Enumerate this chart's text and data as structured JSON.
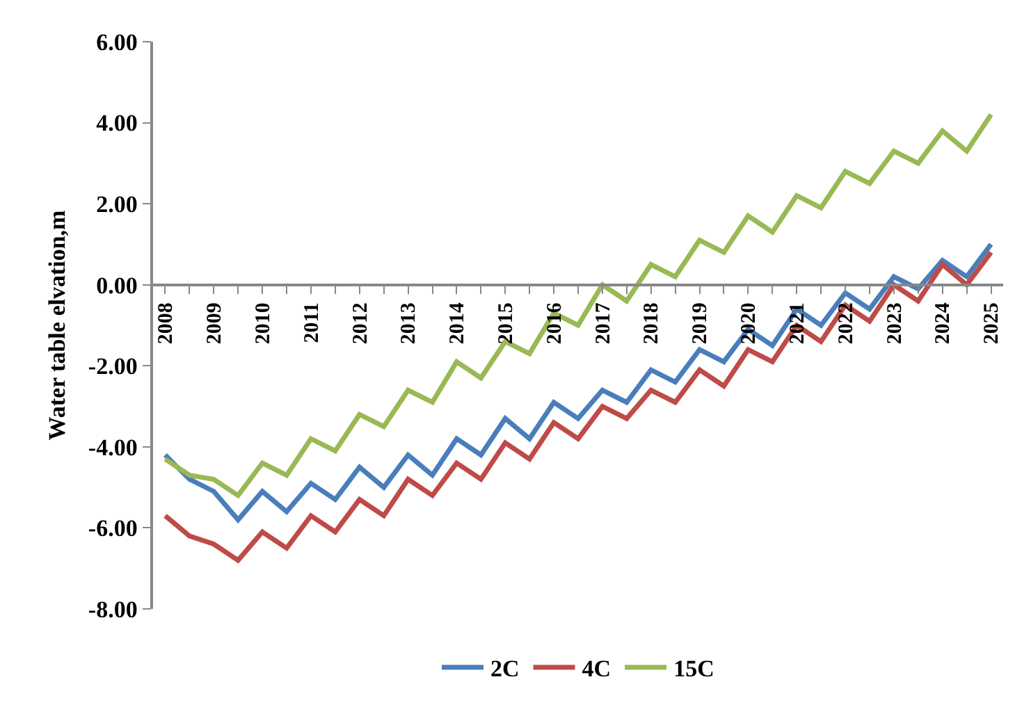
{
  "chart_data": {
    "type": "line",
    "ylabel": "Water table elvation,m",
    "categories": [
      "2008",
      null,
      "2009",
      null,
      "2010",
      null,
      "2011",
      null,
      "2012",
      null,
      "2013",
      null,
      "2014",
      null,
      "2015",
      null,
      "2016",
      null,
      "2017",
      null,
      "2018",
      null,
      "2019",
      null,
      "2020",
      null,
      "2021",
      null,
      "2022",
      null,
      "2023",
      null,
      "2024",
      null,
      "2025"
    ],
    "series": [
      {
        "name": "2C",
        "color": "#4a7ebb",
        "values": [
          -4.2,
          -4.8,
          -5.1,
          -5.8,
          -5.1,
          -5.6,
          -4.9,
          -5.3,
          -4.5,
          -5.0,
          -4.2,
          -4.7,
          -3.8,
          -4.2,
          -3.3,
          -3.8,
          -2.9,
          -3.3,
          -2.6,
          -2.9,
          -2.1,
          -2.4,
          -1.6,
          -1.9,
          -1.1,
          -1.5,
          -0.6,
          -1.0,
          -0.2,
          -0.6,
          0.2,
          -0.1,
          0.6,
          0.2,
          1.0
        ]
      },
      {
        "name": "4C",
        "color": "#be4b48",
        "values": [
          -5.7,
          -6.2,
          -6.4,
          -6.8,
          -6.1,
          -6.5,
          -5.7,
          -6.1,
          -5.3,
          -5.7,
          -4.8,
          -5.2,
          -4.4,
          -4.8,
          -3.9,
          -4.3,
          -3.4,
          -3.8,
          -3.0,
          -3.3,
          -2.6,
          -2.9,
          -2.1,
          -2.5,
          -1.6,
          -1.9,
          -1.0,
          -1.4,
          -0.5,
          -0.9,
          0.0,
          -0.4,
          0.5,
          0.0,
          0.8
        ]
      },
      {
        "name": "15C",
        "color": "#98b954",
        "values": [
          -4.3,
          -4.7,
          -4.8,
          -5.2,
          -4.4,
          -4.7,
          -3.8,
          -4.1,
          -3.2,
          -3.5,
          -2.6,
          -2.9,
          -1.9,
          -2.3,
          -1.4,
          -1.7,
          -0.7,
          -1.0,
          0.0,
          -0.4,
          0.5,
          0.2,
          1.1,
          0.8,
          1.7,
          1.3,
          2.2,
          1.9,
          2.8,
          2.5,
          3.3,
          3.0,
          3.8,
          3.3,
          4.2
        ]
      }
    ],
    "ylim": [
      -8,
      6
    ],
    "yticks": [
      {
        "value": -8,
        "label": "-8.00"
      },
      {
        "value": -6,
        "label": "-6.00"
      },
      {
        "value": -4,
        "label": "-4.00"
      },
      {
        "value": -2,
        "label": "-2.00"
      },
      {
        "value": 0,
        "label": "0.00"
      },
      {
        "value": 2,
        "label": "2.00"
      },
      {
        "value": 4,
        "label": "4.00"
      },
      {
        "value": 6,
        "label": "6.00"
      }
    ],
    "legend": "bottom",
    "marker": "none",
    "line_style": "solid"
  }
}
